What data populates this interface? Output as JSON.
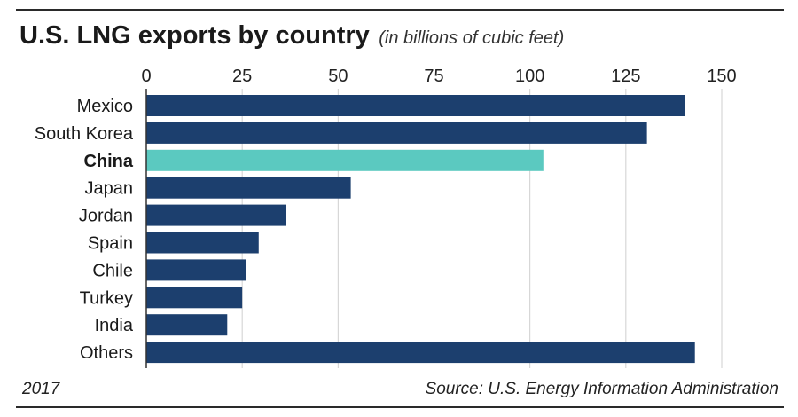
{
  "chart_data": {
    "type": "bar",
    "orientation": "horizontal",
    "title": "U.S. LNG exports by country",
    "subtitle": "(in billions of cubic feet)",
    "categories": [
      "Mexico",
      "South Korea",
      "China",
      "Japan",
      "Jordan",
      "Spain",
      "Chile",
      "Turkey",
      "India",
      "Others"
    ],
    "values": [
      140.5,
      130.5,
      103.5,
      53.3,
      36.5,
      29.3,
      25.9,
      25.0,
      21.1,
      143.0
    ],
    "highlight": "China",
    "xlim": [
      0,
      150
    ],
    "xticks": [
      "0",
      "25",
      "50",
      "75",
      "100",
      "125",
      "150"
    ],
    "grid": true,
    "bar_color": "#1c3f6e",
    "highlight_color": "#5bc9c0",
    "grid_color": "#cfcfcf"
  },
  "footer": {
    "year": "2017",
    "source": "Source: U.S. Energy Information Administration"
  }
}
